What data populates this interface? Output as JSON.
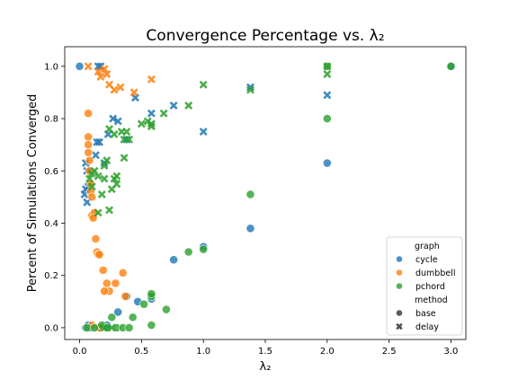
{
  "chart_data": {
    "type": "scatter",
    "title": "Convergence Percentage vs. λ₂",
    "xlabel": "λ₂",
    "ylabel": "Percent of Simulations Converged",
    "xlim": [
      -0.12,
      3.12
    ],
    "ylim": [
      -0.045,
      1.075
    ],
    "xticks": [
      0.0,
      0.5,
      1.0,
      1.5,
      2.0,
      2.5,
      3.0
    ],
    "yticks": [
      0.0,
      0.2,
      0.4,
      0.6,
      0.8,
      1.0
    ],
    "xtick_labels": [
      "0.0",
      "0.5",
      "1.0",
      "1.5",
      "2.0",
      "2.5",
      "3.0"
    ],
    "ytick_labels": [
      "0.0",
      "0.2",
      "0.4",
      "0.6",
      "0.8",
      "1.0"
    ],
    "grid": false,
    "legend_position": "lower-right",
    "legend": {
      "hue_title": "graph",
      "style_title": "method",
      "hue_entries": [
        "cycle",
        "dumbbell",
        "pchord"
      ],
      "style_entries": [
        "base",
        "delay"
      ]
    },
    "colors": {
      "cycle": "#1f77b4",
      "dumbbell": "#ff7f0e",
      "pchord": "#2ca02c",
      "style_marker": "#333333"
    },
    "series": [
      {
        "name": "cycle",
        "method": "base",
        "points": [
          [
            0.0,
            1.0
          ],
          [
            0.05,
            0.0
          ],
          [
            0.07,
            0.01
          ],
          [
            0.09,
            0.0
          ],
          [
            0.15,
            0.0
          ],
          [
            0.22,
            0.01
          ],
          [
            0.31,
            0.06
          ],
          [
            0.38,
            0.12
          ],
          [
            0.47,
            0.1
          ],
          [
            0.58,
            0.11
          ],
          [
            0.76,
            0.26
          ],
          [
            1.0,
            0.31
          ],
          [
            1.38,
            0.38
          ],
          [
            2.0,
            0.63
          ],
          [
            3.0,
            1.0
          ]
        ]
      },
      {
        "name": "cycle",
        "method": "delay",
        "points": [
          [
            0.04,
            0.51
          ],
          [
            0.05,
            0.53
          ],
          [
            0.06,
            0.48
          ],
          [
            0.05,
            0.63
          ],
          [
            0.06,
            0.6
          ],
          [
            0.07,
            0.54
          ],
          [
            0.13,
            0.66
          ],
          [
            0.14,
            0.71
          ],
          [
            0.16,
            0.71
          ],
          [
            0.2,
            0.63
          ],
          [
            0.23,
            0.74
          ],
          [
            0.27,
            0.8
          ],
          [
            0.31,
            0.79
          ],
          [
            0.38,
            0.72
          ],
          [
            0.45,
            0.88
          ],
          [
            0.58,
            0.82
          ],
          [
            0.76,
            0.85
          ],
          [
            1.0,
            0.75
          ],
          [
            1.38,
            0.92
          ],
          [
            2.0,
            0.89
          ],
          [
            0.15,
            1.0
          ],
          [
            0.17,
            1.0
          ]
        ]
      },
      {
        "name": "dumbbell",
        "method": "base",
        "points": [
          [
            0.07,
            0.82
          ],
          [
            0.07,
            0.73
          ],
          [
            0.07,
            0.7
          ],
          [
            0.07,
            0.67
          ],
          [
            0.08,
            0.64
          ],
          [
            0.08,
            0.6
          ],
          [
            0.09,
            0.55
          ],
          [
            0.09,
            0.52
          ],
          [
            0.1,
            0.5
          ],
          [
            0.1,
            0.43
          ],
          [
            0.12,
            0.44
          ],
          [
            0.11,
            0.42
          ],
          [
            0.13,
            0.34
          ],
          [
            0.14,
            0.29
          ],
          [
            0.15,
            0.28
          ],
          [
            0.16,
            0.28
          ],
          [
            0.19,
            0.22
          ],
          [
            0.22,
            0.17
          ],
          [
            0.24,
            0.14
          ],
          [
            0.2,
            0.14
          ],
          [
            0.29,
            0.17
          ],
          [
            0.35,
            0.21
          ],
          [
            0.37,
            0.12
          ],
          [
            0.1,
            0.01
          ],
          [
            0.16,
            0.0
          ]
        ]
      },
      {
        "name": "dumbbell",
        "method": "delay",
        "points": [
          [
            0.07,
            1.0
          ],
          [
            0.15,
            0.98
          ],
          [
            0.17,
            0.96
          ],
          [
            0.2,
            0.99
          ],
          [
            0.22,
            0.97
          ],
          [
            0.24,
            0.93
          ],
          [
            0.28,
            0.91
          ],
          [
            0.33,
            0.92
          ],
          [
            0.44,
            0.9
          ],
          [
            0.58,
            0.95
          ]
        ]
      },
      {
        "name": "pchord",
        "method": "base",
        "points": [
          [
            0.06,
            0.0
          ],
          [
            0.12,
            0.0
          ],
          [
            0.18,
            0.01
          ],
          [
            0.22,
            0.0
          ],
          [
            0.26,
            0.04
          ],
          [
            0.3,
            0.0
          ],
          [
            0.35,
            0.0
          ],
          [
            0.4,
            0.0
          ],
          [
            0.43,
            0.04
          ],
          [
            0.52,
            0.09
          ],
          [
            0.58,
            0.01
          ],
          [
            0.58,
            0.12
          ],
          [
            0.58,
            0.13
          ],
          [
            0.7,
            0.07
          ],
          [
            0.88,
            0.29
          ],
          [
            1.0,
            0.3
          ],
          [
            1.38,
            0.51
          ],
          [
            2.0,
            0.8
          ],
          [
            2.0,
            1.0
          ],
          [
            3.0,
            1.0
          ]
        ]
      },
      {
        "name": "pchord",
        "method": "delay",
        "points": [
          [
            0.08,
            0.57
          ],
          [
            0.1,
            0.59
          ],
          [
            0.1,
            0.54
          ],
          [
            0.12,
            0.6
          ],
          [
            0.15,
            0.58
          ],
          [
            0.18,
            0.51
          ],
          [
            0.2,
            0.57
          ],
          [
            0.2,
            0.62
          ],
          [
            0.22,
            0.64
          ],
          [
            0.24,
            0.45
          ],
          [
            0.24,
            0.76
          ],
          [
            0.26,
            0.53
          ],
          [
            0.28,
            0.57
          ],
          [
            0.28,
            0.74
          ],
          [
            0.3,
            0.58
          ],
          [
            0.3,
            0.55
          ],
          [
            0.34,
            0.75
          ],
          [
            0.36,
            0.65
          ],
          [
            0.36,
            0.72
          ],
          [
            0.38,
            0.75
          ],
          [
            0.4,
            0.72
          ],
          [
            0.5,
            0.78
          ],
          [
            0.55,
            0.79
          ],
          [
            0.58,
            0.77
          ],
          [
            0.58,
            0.78
          ],
          [
            0.68,
            0.82
          ],
          [
            0.88,
            0.85
          ],
          [
            1.0,
            0.93
          ],
          [
            1.38,
            0.91
          ],
          [
            2.0,
            0.97
          ],
          [
            2.0,
            1.0
          ],
          [
            0.15,
            0.44
          ],
          [
            0.2,
            0.0
          ],
          [
            0.26,
            0.0
          ]
        ]
      }
    ]
  }
}
